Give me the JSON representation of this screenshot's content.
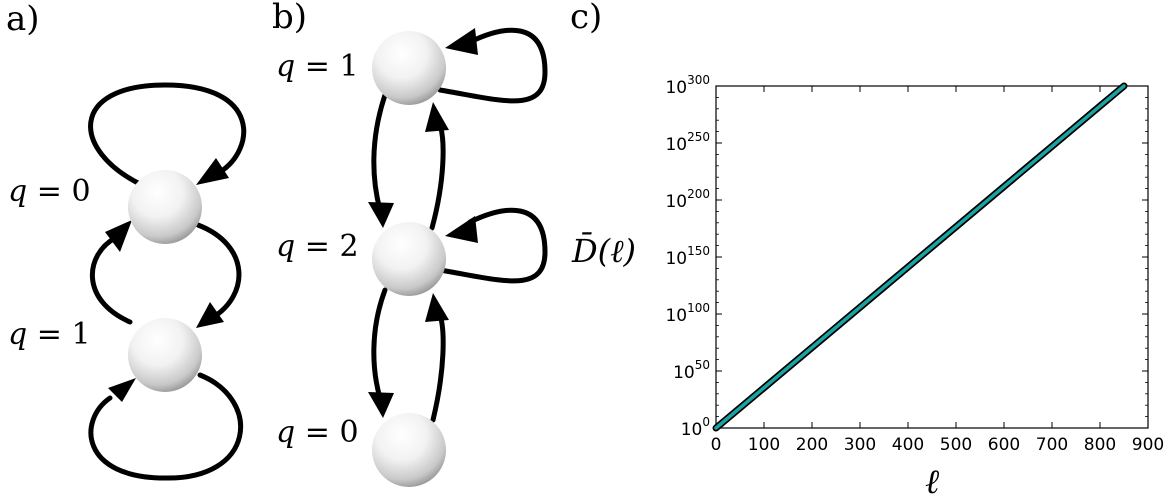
{
  "panels": {
    "a": {
      "label": "a)",
      "states": [
        {
          "label_var": "q",
          "label_eq": " = ",
          "label_val": "0"
        },
        {
          "label_var": "q",
          "label_eq": " = ",
          "label_val": "1"
        }
      ]
    },
    "b": {
      "label": "b)",
      "states": [
        {
          "label_var": "q",
          "label_eq": " = ",
          "label_val": "1"
        },
        {
          "label_var": "q",
          "label_eq": " = ",
          "label_val": "2"
        },
        {
          "label_var": "q",
          "label_eq": " = ",
          "label_val": "0"
        }
      ]
    },
    "c": {
      "label": "c)"
    }
  },
  "chart_data": {
    "type": "line",
    "ylabel": "D̄(ℓ)",
    "xlabel": "ℓ",
    "xlim": [
      0,
      900
    ],
    "y_scale": "log",
    "ylim_exponents": [
      0,
      300
    ],
    "x_ticks": [
      "0",
      "100",
      "200",
      "300",
      "400",
      "500",
      "600",
      "700",
      "800",
      "900"
    ],
    "y_ticks": [
      {
        "base": "10",
        "exp": "0"
      },
      {
        "base": "10",
        "exp": "50"
      },
      {
        "base": "10",
        "exp": "100"
      },
      {
        "base": "10",
        "exp": "150"
      },
      {
        "base": "10",
        "exp": "200"
      },
      {
        "base": "10",
        "exp": "250"
      },
      {
        "base": "10",
        "exp": "300"
      }
    ],
    "series": [
      {
        "color": "#1aa3a3",
        "x": [
          0,
          100,
          200,
          300,
          400,
          500,
          600,
          700,
          800,
          850
        ],
        "log10_y": [
          0,
          35.3,
          70.6,
          105.9,
          141.2,
          176.5,
          211.8,
          247.1,
          282.4,
          300
        ]
      }
    ]
  }
}
